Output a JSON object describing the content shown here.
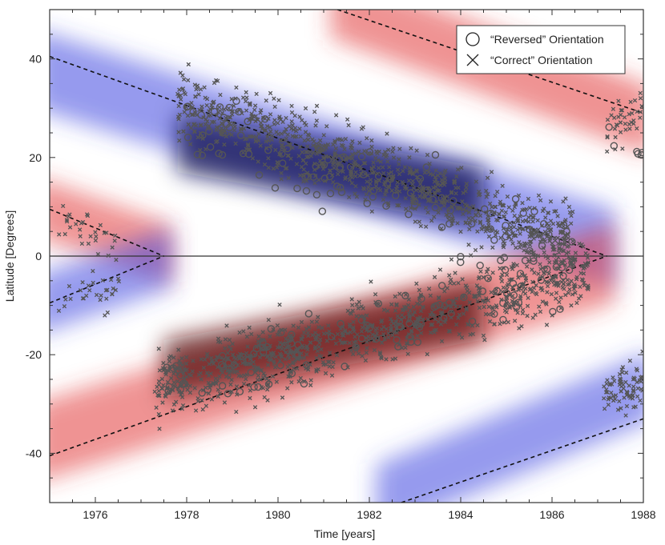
{
  "chart_data": {
    "type": "scatter",
    "title": "",
    "xlabel": "Time [years]",
    "ylabel": "Latitude [Degrees]",
    "xlim": [
      1975.0,
      1988.0
    ],
    "ylim": [
      -50,
      50
    ],
    "x_ticks": [
      1976,
      1978,
      1980,
      1982,
      1984,
      1986,
      1988
    ],
    "x_tick_labels": [
      "1976",
      "1978",
      "1980",
      "1982",
      "1984",
      "1986",
      "1988"
    ],
    "y_ticks": [
      -40,
      -20,
      0,
      20,
      40
    ],
    "y_tick_labels": [
      "-40",
      "-20",
      "0",
      "20",
      "40"
    ],
    "grid": false,
    "legend_position": "top-right",
    "legend": [
      {
        "label": "“Reversed” Orientation",
        "marker": "circle"
      },
      {
        "label": "“Correct” Orientation",
        "marker": "cross"
      }
    ],
    "colors": {
      "marker": "#555555",
      "positive_band": "#e23a3a",
      "negative_band": "#3f48e0",
      "positive_core": "#5a0a0a",
      "negative_core": "#0a1450"
    },
    "background_bands": [
      {
        "polarity": "negative",
        "x": [
          1975.0,
          1987.2
        ],
        "y_center": [
          37,
          2
        ],
        "half_width": 8
      },
      {
        "polarity": "positive",
        "x": [
          1975.0,
          1987.2
        ],
        "y_center": [
          -37,
          -2
        ],
        "half_width": 8
      },
      {
        "polarity": "positive",
        "x": [
          1975.0,
          1977.5
        ],
        "y_center": [
          9,
          1
        ],
        "half_width": 6
      },
      {
        "polarity": "negative",
        "x": [
          1975.0,
          1977.5
        ],
        "y_center": [
          -9,
          -1
        ],
        "half_width": 6
      },
      {
        "polarity": "positive",
        "x": [
          1981.5,
          1988.0
        ],
        "y_center": [
          50,
          28
        ],
        "half_width": 7
      },
      {
        "polarity": "negative",
        "x": [
          1982.5,
          1988.0
        ],
        "y_center": [
          -48,
          -27
        ],
        "half_width": 7
      }
    ],
    "dashed_lines": [
      {
        "x": [
          1975.0,
          1987.2
        ],
        "y": [
          40.5,
          0
        ]
      },
      {
        "x": [
          1975.0,
          1987.2
        ],
        "y": [
          -40.5,
          0
        ]
      },
      {
        "x": [
          1975.0,
          1977.5
        ],
        "y": [
          9.5,
          0
        ]
      },
      {
        "x": [
          1975.0,
          1977.5
        ],
        "y": [
          -9.5,
          0
        ]
      },
      {
        "x": [
          1981.3,
          1988.0
        ],
        "y": [
          50,
          29
        ]
      },
      {
        "x": [
          1982.7,
          1988.0
        ],
        "y": [
          -50,
          -33
        ]
      }
    ],
    "zero_line": 0,
    "series": [
      {
        "name": "“Correct” Orientation",
        "marker": "cross",
        "clusters": [
          {
            "x0": 1977.8,
            "x1": 1986.5,
            "y0": 31,
            "y1": 3,
            "spread": 7,
            "count": 900
          },
          {
            "x0": 1977.3,
            "x1": 1986.8,
            "y0": -27,
            "y1": -3,
            "spread": 7,
            "count": 900
          },
          {
            "x0": 1975.2,
            "x1": 1976.5,
            "y0": 8,
            "y1": 2,
            "spread": 4,
            "count": 30
          },
          {
            "x0": 1975.2,
            "x1": 1976.7,
            "y0": -9,
            "y1": -6,
            "spread": 4,
            "count": 30
          },
          {
            "x0": 1987.2,
            "x1": 1988.0,
            "y0": 26,
            "y1": 29,
            "spread": 5,
            "count": 40
          },
          {
            "x0": 1987.1,
            "x1": 1988.0,
            "y0": -29,
            "y1": -25,
            "spread": 5,
            "count": 80
          }
        ]
      },
      {
        "name": "“Reversed” Orientation",
        "marker": "circle",
        "clusters": [
          {
            "x0": 1978.0,
            "x1": 1986.5,
            "y0": 27,
            "y1": 2,
            "spread": 7,
            "count": 110
          },
          {
            "x0": 1977.5,
            "x1": 1986.5,
            "y0": -26,
            "y1": -4,
            "spread": 7,
            "count": 110
          },
          {
            "x0": 1987.2,
            "x1": 1988.0,
            "y0": 24,
            "y1": 21,
            "spread": 3,
            "count": 6
          }
        ]
      }
    ]
  }
}
